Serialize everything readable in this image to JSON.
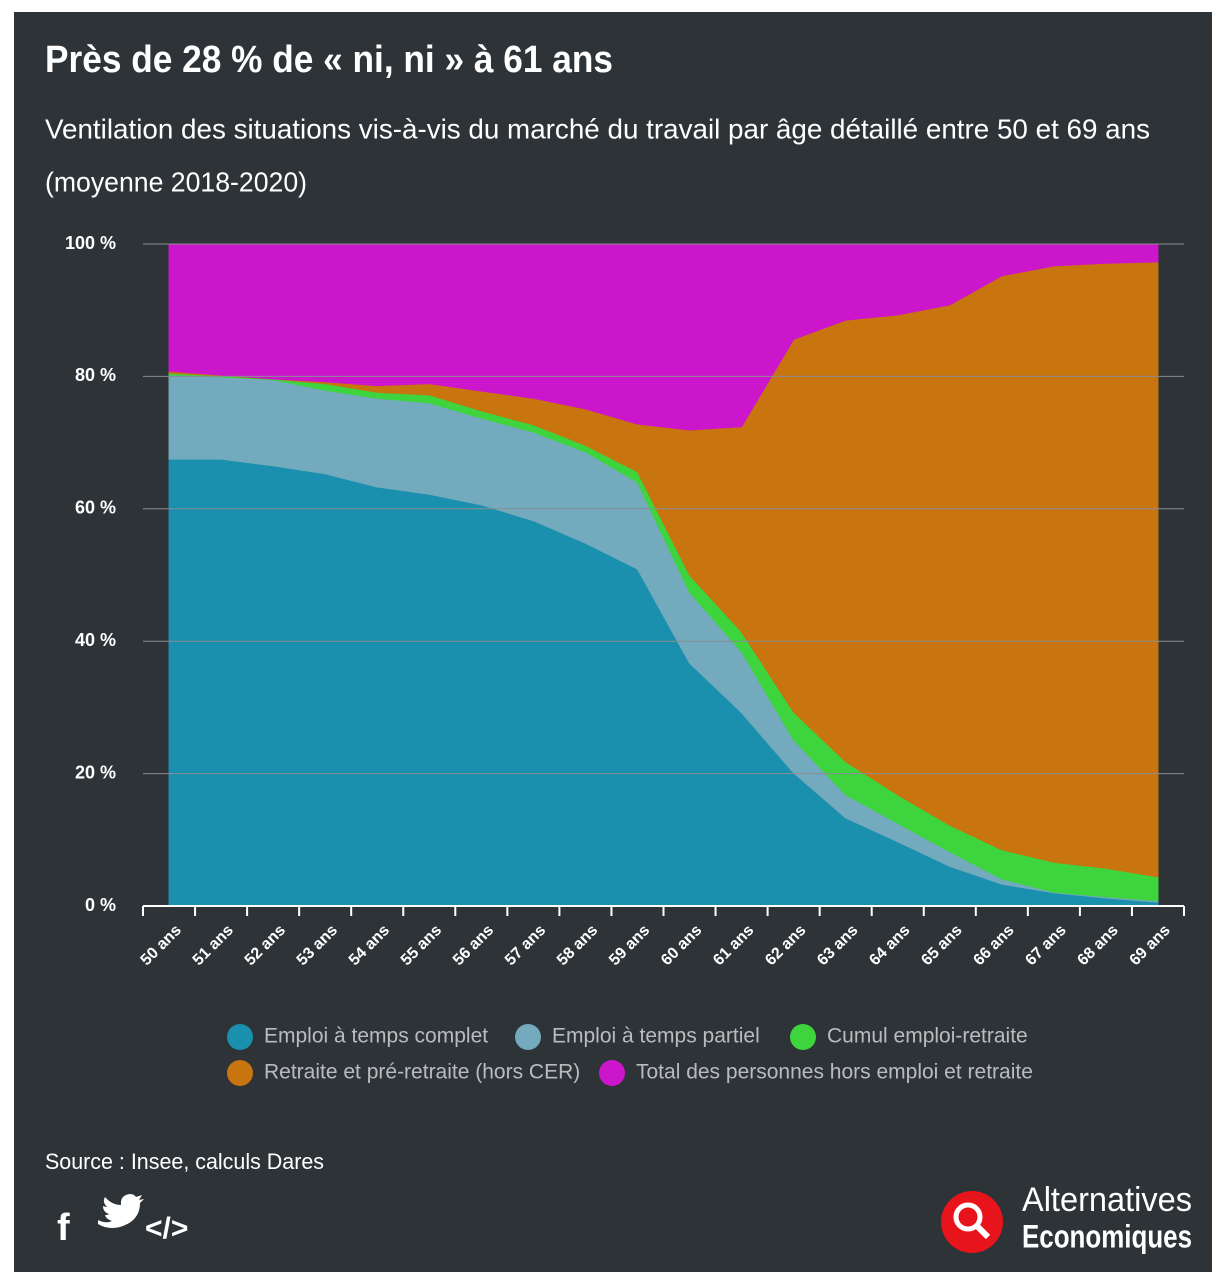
{
  "chart_data": {
    "type": "stacked_area",
    "title": "Près de 28 % de « ni, ni » à 61 ans",
    "subtitle": [
      "Ventilation des situations vis-à-vis du marché du travail par âge détaillé entre 50 et 69 ans",
      "(moyenne 2018-2020)"
    ],
    "categories": [
      "50 ans",
      "51 ans",
      "52 ans",
      "53 ans",
      "54 ans",
      "55 ans",
      "56 ans",
      "57 ans",
      "58 ans",
      "59 ans",
      "60 ans",
      "61 ans",
      "62 ans",
      "63 ans",
      "64 ans",
      "65 ans",
      "66 ans",
      "67 ans",
      "68 ans",
      "69 ans"
    ],
    "series": [
      {
        "name": "Emploi à temps complet",
        "color": "#1a8fae",
        "values": [
          67.5,
          67.5,
          66.5,
          65.3,
          63.3,
          62.2,
          60.6,
          58.2,
          54.8,
          50.9,
          36.7,
          29.2,
          20.1,
          13.3,
          9.7,
          6.0,
          3.3,
          2.0,
          1.2,
          0.6
        ]
      },
      {
        "name": "Emploi à temps partiel",
        "color": "#73aabd",
        "values": [
          12.7,
          12.4,
          13.0,
          12.6,
          13.4,
          13.8,
          13.1,
          13.4,
          13.8,
          13.1,
          10.7,
          9.2,
          5.0,
          3.5,
          2.8,
          2.2,
          0.8,
          0.1,
          0.2,
          0.2
        ]
      },
      {
        "name": "Cumul emploi-retraite",
        "color": "#3ed43e",
        "values": [
          0.3,
          0.2,
          0.1,
          1.0,
          0.9,
          1.2,
          1.1,
          1.1,
          1.0,
          1.6,
          2.6,
          3.0,
          4.2,
          5.0,
          4.3,
          4.0,
          4.4,
          4.5,
          4.3,
          3.6
        ]
      },
      {
        "name": "Retraite et pré-retraite (hors CER)",
        "color": "#c8740f",
        "values": [
          0.3,
          0.1,
          0.0,
          0.3,
          1.0,
          1.7,
          3.0,
          4.0,
          5.5,
          7.2,
          21.9,
          31.0,
          56.3,
          66.7,
          72.5,
          78.6,
          86.7,
          90.1,
          91.4,
          92.9
        ]
      },
      {
        "name": "Total des personnes hors emploi et retraite",
        "color": "#cc16cc",
        "values": [
          19.2,
          19.8,
          20.4,
          20.8,
          21.4,
          21.1,
          22.2,
          23.3,
          24.9,
          27.2,
          28.1,
          27.6,
          14.4,
          11.5,
          10.7,
          9.2,
          4.8,
          3.3,
          2.9,
          2.7
        ]
      }
    ],
    "ylim": [
      0,
      100
    ],
    "yticks": [
      {
        "value": 0,
        "label": "0 %"
      },
      {
        "value": 20,
        "label": "20 %"
      },
      {
        "value": 40,
        "label": "40 %"
      },
      {
        "value": 60,
        "label": "60 %"
      },
      {
        "value": 80,
        "label": "80 %"
      },
      {
        "value": 100,
        "label": "100 %"
      }
    ],
    "grid": true,
    "source": "Source : Insee, calculs Dares",
    "logo": [
      "Alternatives",
      "Economiques"
    ]
  }
}
